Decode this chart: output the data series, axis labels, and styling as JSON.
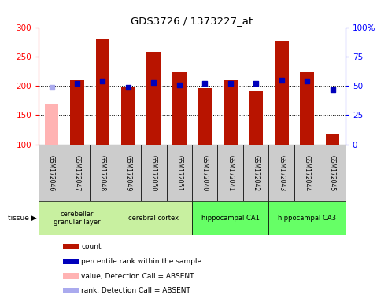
{
  "title": "GDS3726 / 1373227_at",
  "samples": [
    "GSM172046",
    "GSM172047",
    "GSM172048",
    "GSM172049",
    "GSM172050",
    "GSM172051",
    "GSM172040",
    "GSM172041",
    "GSM172042",
    "GSM172043",
    "GSM172044",
    "GSM172045"
  ],
  "count_values": [
    null,
    209,
    280,
    199,
    258,
    224,
    196,
    210,
    191,
    276,
    224,
    118
  ],
  "count_absent": [
    170,
    null,
    null,
    null,
    null,
    null,
    null,
    null,
    null,
    null,
    null,
    null
  ],
  "percentile_values": [
    null,
    52,
    54,
    49,
    53,
    51,
    52,
    52,
    52,
    55,
    54,
    47
  ],
  "percentile_absent": [
    49,
    null,
    null,
    null,
    null,
    null,
    null,
    null,
    null,
    null,
    null,
    null
  ],
  "ylim_left": [
    100,
    300
  ],
  "ylim_right": [
    0,
    100
  ],
  "yticks_left": [
    100,
    150,
    200,
    250,
    300
  ],
  "yticks_right": [
    0,
    25,
    50,
    75,
    100
  ],
  "tissue_groups": [
    {
      "label": "cerebellar\ngranular layer",
      "color": "#c8f0a0",
      "xstart": 0,
      "xend": 3
    },
    {
      "label": "cerebral cortex",
      "color": "#c8f0a0",
      "xstart": 3,
      "xend": 6
    },
    {
      "label": "hippocampal CA1",
      "color": "#66ff66",
      "xstart": 6,
      "xend": 9
    },
    {
      "label": "hippocampal CA3",
      "color": "#66ff66",
      "xstart": 9,
      "xend": 12
    }
  ],
  "bar_color_present": "#b81400",
  "bar_color_absent": "#ffb3b3",
  "dot_color_present": "#0000bb",
  "dot_color_absent": "#aaaaee",
  "bar_width": 0.55,
  "dot_size": 25,
  "sample_row_color": "#cccccc",
  "legend_items": [
    {
      "color": "#b81400",
      "label": "count"
    },
    {
      "color": "#0000bb",
      "label": "percentile rank within the sample"
    },
    {
      "color": "#ffb3b3",
      "label": "value, Detection Call = ABSENT"
    },
    {
      "color": "#aaaaee",
      "label": "rank, Detection Call = ABSENT"
    }
  ]
}
